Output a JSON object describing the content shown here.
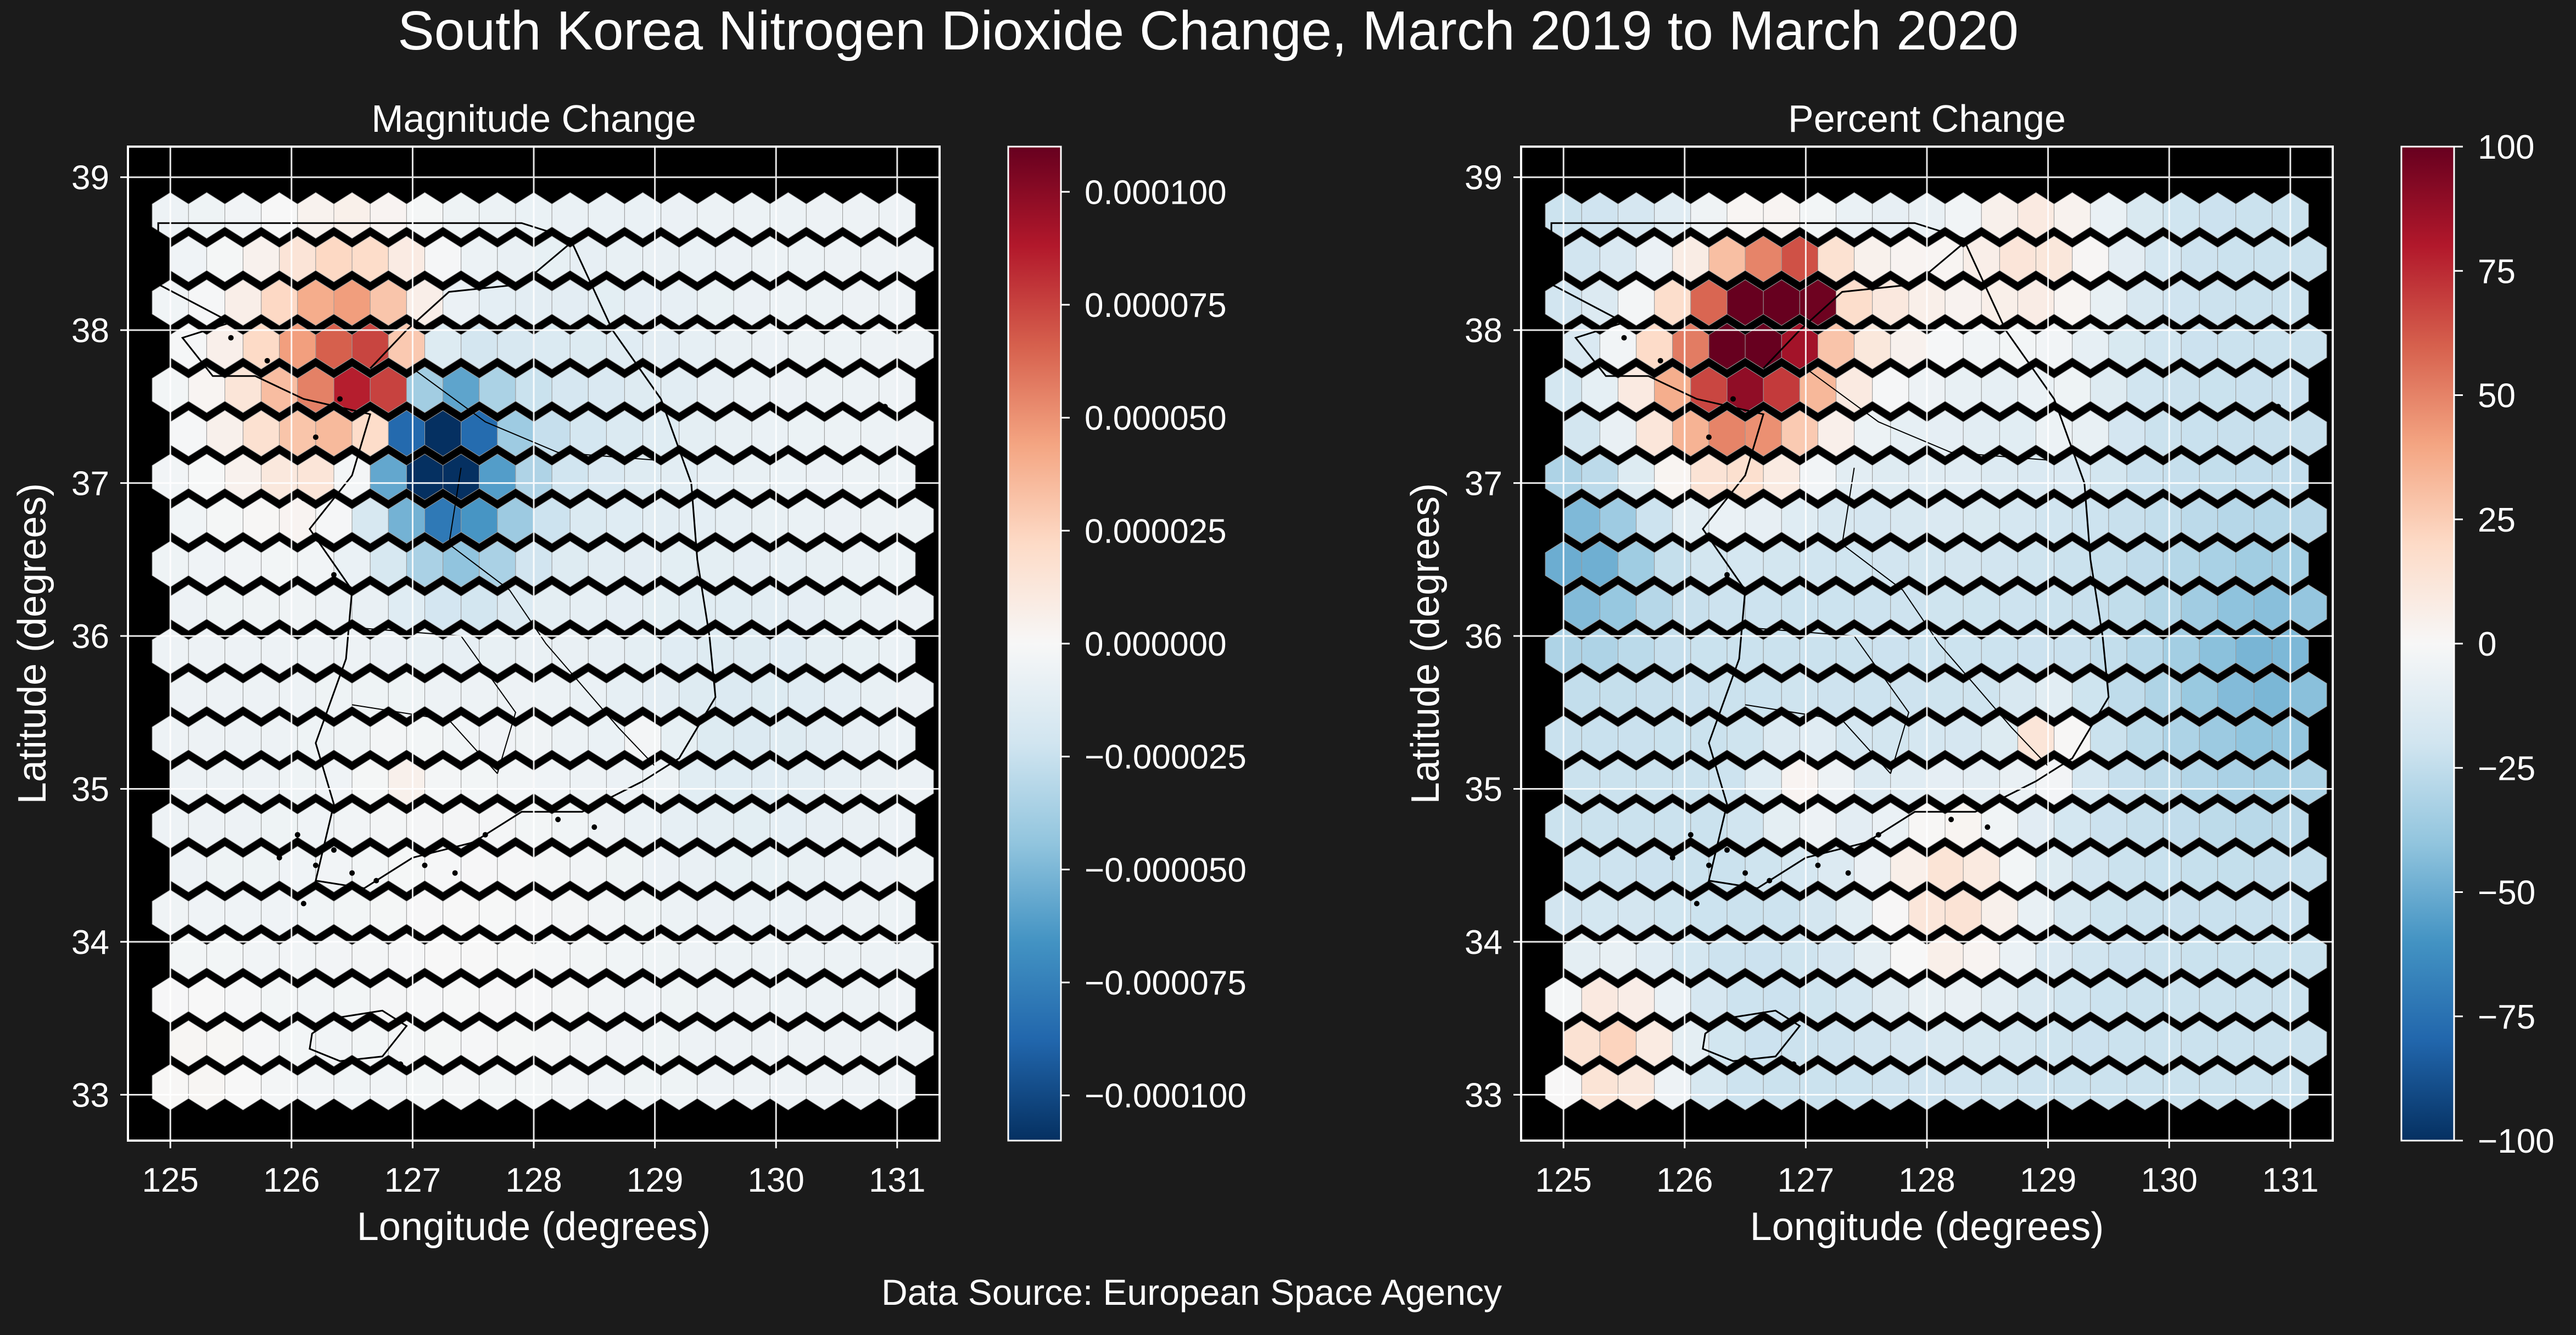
{
  "figure": {
    "title": "South Korea Nitrogen Dioxide Change, March 2019 to March 2020",
    "source": "Data Source: European Space Agency",
    "background": "#1b1b1b",
    "map_background": "#000000",
    "colormap": [
      "#053061",
      "#2166ac",
      "#4393c3",
      "#92c5de",
      "#d1e5f0",
      "#f7f7f7",
      "#fddbc7",
      "#f4a582",
      "#d6604d",
      "#b2182b",
      "#67001f"
    ]
  },
  "chart_data": [
    {
      "type": "heatmap",
      "subtype": "hexbin map",
      "title": "Magnitude Change",
      "xlabel": "Longitude (degrees)",
      "ylabel": "Latitude (degrees)",
      "xlim": [
        124.65,
        131.35
      ],
      "ylim": [
        32.7,
        39.2
      ],
      "xticks": [
        "125",
        "126",
        "127",
        "128",
        "129",
        "130",
        "131"
      ],
      "yticks": [
        "33",
        "34",
        "35",
        "36",
        "37",
        "38",
        "39"
      ],
      "grid": true,
      "colorbar": {
        "range": [
          -0.00011,
          0.00011
        ],
        "ticks": [
          -0.0001,
          -7.5e-05,
          -5e-05,
          -2.5e-05,
          0,
          2.5e-05,
          5e-05,
          7.5e-05,
          0.0001
        ],
        "tick_labels": [
          "−0.000100",
          "−0.000075",
          "−0.000050",
          "−0.000025",
          "0.000000",
          "0.000025",
          "0.000050",
          "0.000075",
          "0.000100"
        ]
      },
      "hexgrid": {
        "lon_range": [
          125.0,
          131.0
        ],
        "lat_range": [
          33.05,
          38.75
        ],
        "columns": 21,
        "rows": 21
      },
      "background_level": -6e-06,
      "features": [
        {
          "lon": 126.75,
          "lat": 37.6,
          "value": 9e-05,
          "radius": 0.22
        },
        {
          "lon": 126.4,
          "lat": 37.65,
          "value": 4e-05,
          "radius": 0.45
        },
        {
          "lon": 126.5,
          "lat": 38.05,
          "value": 3e-05,
          "radius": 0.45
        },
        {
          "lon": 126.0,
          "lat": 37.5,
          "value": 1.2e-05,
          "radius": 0.6
        },
        {
          "lon": 127.2,
          "lat": 37.2,
          "value": -0.000105,
          "radius": 0.22
        },
        {
          "lon": 127.0,
          "lat": 37.35,
          "value": -6e-05,
          "radius": 0.35
        },
        {
          "lon": 127.4,
          "lat": 37.1,
          "value": -3.5e-05,
          "radius": 0.5
        },
        {
          "lon": 127.4,
          "lat": 36.7,
          "value": -2.5e-05,
          "radius": 0.35
        },
        {
          "lon": 128.5,
          "lat": 37.4,
          "value": -1e-05,
          "radius": 0.7
        },
        {
          "lon": 129.7,
          "lat": 35.5,
          "value": -1e-05,
          "radius": 0.7
        },
        {
          "lon": 129.0,
          "lat": 35.25,
          "value": 1.2e-05,
          "radius": 0.15
        },
        {
          "lon": 126.9,
          "lat": 35.1,
          "value": 1e-05,
          "radius": 0.15
        },
        {
          "lon": 127.5,
          "lat": 34.0,
          "value": 6e-06,
          "radius": 0.9
        },
        {
          "lon": 125.2,
          "lat": 33.2,
          "value": 8e-06,
          "radius": 0.5
        }
      ]
    },
    {
      "type": "heatmap",
      "subtype": "hexbin map",
      "title": "Percent Change",
      "xlabel": "Longitude (degrees)",
      "ylabel": "Latitude (degrees)",
      "xlim": [
        124.65,
        131.35
      ],
      "ylim": [
        32.7,
        39.2
      ],
      "xticks": [
        "125",
        "126",
        "127",
        "128",
        "129",
        "130",
        "131"
      ],
      "yticks": [
        "33",
        "34",
        "35",
        "36",
        "37",
        "38",
        "39"
      ],
      "grid": true,
      "colorbar": {
        "range": [
          -100,
          100
        ],
        "ticks": [
          -100,
          -75,
          -50,
          -25,
          0,
          25,
          50,
          75,
          100
        ],
        "tick_labels": [
          "−100",
          "−75",
          "−50",
          "−25",
          "0",
          "25",
          "50",
          "75",
          "100"
        ]
      },
      "hexgrid": {
        "lon_range": [
          125.0,
          131.0
        ],
        "lat_range": [
          33.05,
          38.75
        ],
        "columns": 21,
        "rows": 21
      },
      "background_level": -22,
      "features": [
        {
          "lon": 126.6,
          "lat": 38.05,
          "value": 115,
          "radius": 0.22
        },
        {
          "lon": 126.95,
          "lat": 38.25,
          "value": 110,
          "radius": 0.15
        },
        {
          "lon": 126.7,
          "lat": 38.0,
          "value": 55,
          "radius": 0.55
        },
        {
          "lon": 126.5,
          "lat": 37.6,
          "value": 40,
          "radius": 0.45
        },
        {
          "lon": 126.0,
          "lat": 37.6,
          "value": 28,
          "radius": 0.5
        },
        {
          "lon": 127.8,
          "lat": 38.2,
          "value": 20,
          "radius": 0.4
        },
        {
          "lon": 128.9,
          "lat": 38.5,
          "value": 35,
          "radius": 0.5
        },
        {
          "lon": 125.15,
          "lat": 36.5,
          "value": -30,
          "radius": 0.4
        },
        {
          "lon": 130.8,
          "lat": 35.8,
          "value": -25,
          "radius": 0.6
        },
        {
          "lon": 129.0,
          "lat": 35.3,
          "value": 38,
          "radius": 0.2
        },
        {
          "lon": 127.0,
          "lat": 35.0,
          "value": 25,
          "radius": 0.25
        },
        {
          "lon": 128.2,
          "lat": 34.3,
          "value": 38,
          "radius": 0.5
        },
        {
          "lon": 125.4,
          "lat": 33.3,
          "value": 45,
          "radius": 0.4
        },
        {
          "lon": 128.2,
          "lat": 37.2,
          "value": 10,
          "radius": 0.5
        },
        {
          "lon": 129.2,
          "lat": 37.4,
          "value": 15,
          "radius": 0.25
        }
      ]
    }
  ]
}
